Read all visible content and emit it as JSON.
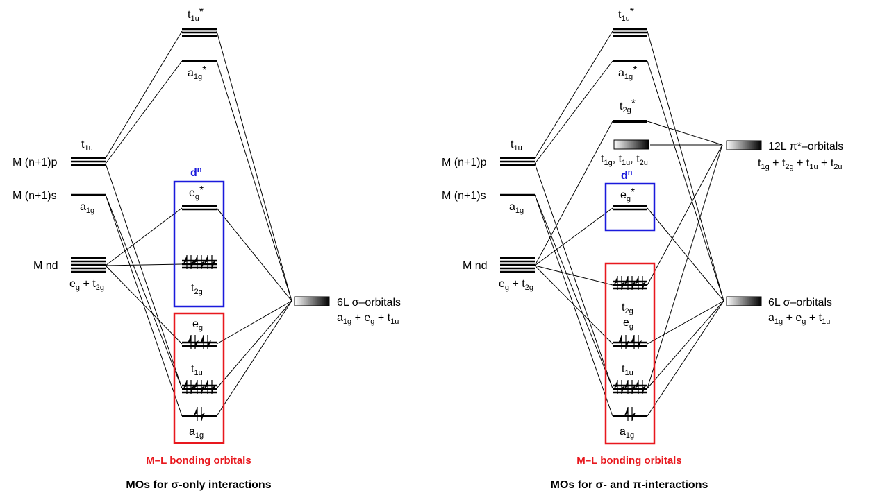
{
  "left_diagram": {
    "caption": "MOs for σ-only interactions",
    "box_red_label": "M–L bonding orbitals",
    "box_blue_label": "d",
    "box_blue_sup": "n",
    "metal": {
      "np_label": "M (n+1)p",
      "np_sym": "t",
      "np_sym_sub": "1u",
      "ns_label": "M (n+1)s",
      "ns_sym": "a",
      "ns_sym_sub": "1g",
      "nd_label": "M nd",
      "nd_sym": [
        "e",
        "g",
        " + t",
        "2g"
      ]
    },
    "mo": {
      "t1u_star": [
        "t",
        "1u",
        "*"
      ],
      "a1g_star": [
        "a",
        "1g",
        "*"
      ],
      "eg_star": [
        "e",
        "g",
        "*"
      ],
      "t2g": [
        "t",
        "2g"
      ],
      "eg": [
        "e",
        "g"
      ],
      "t1u": [
        "t",
        "1u"
      ],
      "a1g": [
        "a",
        "1g"
      ]
    },
    "ligand": {
      "label": "6L σ–orbitals",
      "sym": [
        "a",
        "1g",
        " + e",
        "g",
        " + t",
        "1u"
      ]
    }
  },
  "right_diagram": {
    "caption": "MOs for σ- and π-interactions",
    "box_red_label": "M–L bonding orbitals",
    "box_blue_label": "d",
    "box_blue_sup": "n",
    "metal": {
      "np_label": "M (n+1)p",
      "np_sym": "t",
      "np_sym_sub": "1u",
      "ns_label": "M (n+1)s",
      "ns_sym": "a",
      "ns_sym_sub": "1g",
      "nd_label": "M nd",
      "nd_sym": [
        "e",
        "g",
        " + t",
        "2g"
      ]
    },
    "mo": {
      "t1u_star": [
        "t",
        "1u",
        "*"
      ],
      "a1g_star": [
        "a",
        "1g",
        "*"
      ],
      "t2g_star": [
        "t",
        "2g",
        "*"
      ],
      "nb": [
        "t",
        "1g",
        ", t",
        "1u",
        ", t",
        "2u"
      ],
      "eg_star": [
        "e",
        "g",
        "*"
      ],
      "t2g": [
        "t",
        "2g"
      ],
      "eg": [
        "e",
        "g"
      ],
      "t1u": [
        "t",
        "1u"
      ],
      "a1g": [
        "a",
        "1g"
      ]
    },
    "ligand_pi": {
      "label": "12L π*–orbitals",
      "sym": [
        "t",
        "1g",
        " + t",
        "2g",
        " + t",
        "1u",
        "  + t",
        "2u"
      ]
    },
    "ligand": {
      "label": "6L σ–orbitals",
      "sym": [
        "a",
        "1g",
        " + e",
        "g",
        " + t",
        "1u"
      ]
    }
  },
  "colors": {
    "bonding_box": "#e8181e",
    "dn_box": "#1a1adc"
  }
}
